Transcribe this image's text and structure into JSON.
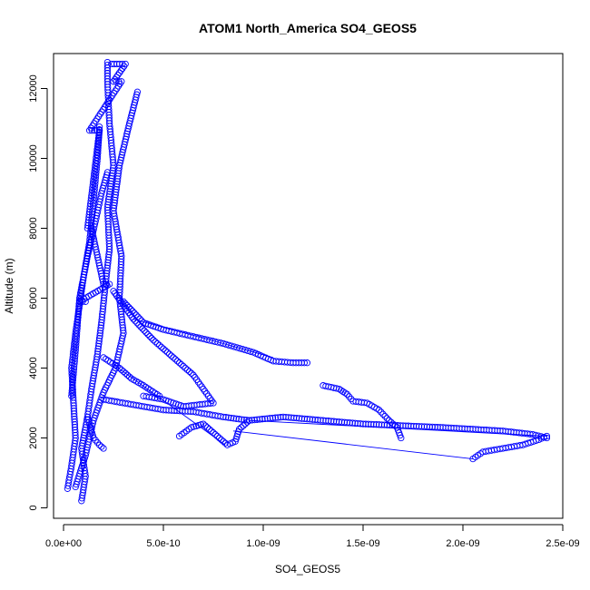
{
  "chart_data": {
    "type": "scatter",
    "title": "ATOM1 North_America SO4_GEOS5",
    "xlabel": "SO4_GEOS5",
    "ylabel": "Altitude (m)",
    "xlim": [
      -5e-11,
      2.5e-09
    ],
    "ylim": [
      -300,
      13000
    ],
    "xticks": [
      0,
      5e-10,
      1e-09,
      1.5e-09,
      2e-09,
      2.5e-09
    ],
    "xtick_labels": [
      "0.0e+00",
      "5.0e-10",
      "1.0e-09",
      "1.5e-09",
      "2.0e-09",
      "2.5e-09"
    ],
    "yticks": [
      0,
      2000,
      4000,
      6000,
      8000,
      10000,
      12000
    ],
    "ytick_labels": [
      "0",
      "2000",
      "4000",
      "6000",
      "8000",
      "10000",
      "12000"
    ],
    "grid": false,
    "legend": "none",
    "marker": "open-circle",
    "color": "#0000ff",
    "series": [
      {
        "points": [
          [
            2e-11,
            550
          ],
          [
            4e-11,
            1200
          ],
          [
            6e-11,
            2000
          ],
          [
            5e-11,
            3000
          ],
          [
            4e-11,
            4000
          ],
          [
            6e-11,
            5000
          ],
          [
            8e-11,
            5800
          ],
          [
            1e-10,
            6600
          ],
          [
            1.3e-10,
            7600
          ],
          [
            1.5e-10,
            8800
          ],
          [
            1.7e-10,
            10000
          ],
          [
            1.8e-10,
            10900
          ]
        ]
      },
      {
        "points": [
          [
            9e-11,
            200
          ],
          [
            1.1e-10,
            900
          ],
          [
            9e-11,
            1700
          ],
          [
            1.2e-10,
            2600
          ],
          [
            1.4e-10,
            3400
          ],
          [
            1.7e-10,
            4400
          ],
          [
            1.9e-10,
            5300
          ],
          [
            2.1e-10,
            6400
          ],
          [
            2.3e-10,
            7400
          ],
          [
            2.2e-10,
            8600
          ],
          [
            2.5e-10,
            9800
          ],
          [
            2.3e-10,
            11000
          ],
          [
            2.2e-10,
            12200
          ],
          [
            2.2e-10,
            12750
          ]
        ]
      },
      {
        "points": [
          [
            6e-11,
            600
          ],
          [
            1.1e-10,
            1500
          ],
          [
            1.5e-10,
            2500
          ],
          [
            2e-10,
            3300
          ],
          [
            2.6e-10,
            4000
          ],
          [
            3e-10,
            5000
          ],
          [
            2.8e-10,
            6000
          ],
          [
            2.9e-10,
            7200
          ],
          [
            2.5e-10,
            8500
          ],
          [
            2.8e-10,
            9800
          ],
          [
            3.3e-10,
            11000
          ],
          [
            3.7e-10,
            11900
          ]
        ]
      },
      {
        "points": [
          [
            4e-11,
            3200
          ],
          [
            6e-11,
            4500
          ],
          [
            8e-11,
            6000
          ],
          [
            1.2e-10,
            7200
          ],
          [
            1.6e-10,
            8200
          ],
          [
            1.9e-10,
            9000
          ],
          [
            2.2e-10,
            9600
          ]
        ]
      },
      {
        "points": [
          [
            2.4e-10,
            12700
          ],
          [
            2.8e-10,
            12700
          ],
          [
            3.1e-10,
            12700
          ],
          [
            2.5e-10,
            12200
          ],
          [
            2.9e-10,
            12200
          ],
          [
            1.3e-10,
            10800
          ],
          [
            1.8e-10,
            10800
          ],
          [
            1.2e-10,
            8000
          ],
          [
            1.4e-10,
            8000
          ],
          [
            2e-10,
            6400
          ],
          [
            2.3e-10,
            6400
          ],
          [
            8e-11,
            5900
          ],
          [
            1.1e-10,
            5900
          ]
        ]
      },
      {
        "points": [
          [
            2.5e-10,
            6200
          ],
          [
            3.5e-10,
            5400
          ],
          [
            4.5e-10,
            4800
          ],
          [
            5.5e-10,
            4300
          ],
          [
            6.5e-10,
            3800
          ],
          [
            7e-10,
            3400
          ],
          [
            7.5e-10,
            3000
          ],
          [
            6e-10,
            2900
          ],
          [
            5e-10,
            3100
          ],
          [
            4e-10,
            3200
          ]
        ]
      },
      {
        "points": [
          [
            3e-10,
            5900
          ],
          [
            4e-10,
            5300
          ],
          [
            5e-10,
            5100
          ],
          [
            6.5e-10,
            4900
          ],
          [
            8e-10,
            4700
          ],
          [
            9.5e-10,
            4450
          ],
          [
            1.05e-09,
            4200
          ],
          [
            1.15e-09,
            4150
          ],
          [
            1.22e-09,
            4150
          ]
        ]
      },
      {
        "points": [
          [
            1.3e-09,
            3500
          ],
          [
            1.38e-09,
            3400
          ],
          [
            1.42e-09,
            3250
          ],
          [
            1.45e-09,
            3050
          ],
          [
            1.52e-09,
            3000
          ],
          [
            1.58e-09,
            2800
          ],
          [
            1.63e-09,
            2500
          ],
          [
            1.67e-09,
            2300
          ],
          [
            1.69e-09,
            2000
          ]
        ]
      },
      {
        "points": [
          [
            2e-10,
            3100
          ],
          [
            3.5e-10,
            2950
          ],
          [
            5e-10,
            2800
          ],
          [
            6.5e-10,
            2750
          ],
          [
            8e-10,
            2600
          ],
          [
            9.3e-10,
            2500
          ],
          [
            1.1e-09,
            2600
          ],
          [
            1.3e-09,
            2500
          ],
          [
            1.5e-09,
            2400
          ],
          [
            1.7e-09,
            2350
          ],
          [
            1.9e-09,
            2300
          ],
          [
            2.05e-09,
            2250
          ],
          [
            2.2e-09,
            2200
          ],
          [
            2.35e-09,
            2100
          ],
          [
            2.42e-09,
            2000
          ]
        ]
      },
      {
        "points": [
          [
            2.05e-09,
            1400
          ],
          [
            2.1e-09,
            1600
          ],
          [
            2.2e-09,
            1700
          ],
          [
            2.3e-09,
            1800
          ],
          [
            2.38e-09,
            1950
          ],
          [
            2.42e-09,
            2050
          ]
        ]
      },
      {
        "points": [
          [
            5.8e-10,
            2050
          ],
          [
            6.4e-10,
            2300
          ],
          [
            7e-10,
            2400
          ],
          [
            8.2e-10,
            1800
          ],
          [
            8.6e-10,
            1900
          ],
          [
            8.8e-10,
            2250
          ],
          [
            9.3e-10,
            2500
          ]
        ]
      },
      {
        "points": [
          [
            1.2e-10,
            2600
          ],
          [
            1.5e-10,
            2000
          ],
          [
            1.8e-10,
            1800
          ],
          [
            2e-10,
            1700
          ]
        ]
      },
      {
        "points": [
          [
            2e-10,
            4300
          ],
          [
            2.8e-10,
            4000
          ],
          [
            3.4e-10,
            3700
          ],
          [
            4e-10,
            3500
          ],
          [
            4.8e-10,
            3200
          ]
        ]
      }
    ],
    "connector_lines": [
      {
        "points": [
          [
            2.5e-10,
            4100
          ],
          [
            8.1e-10,
            1800
          ]
        ]
      },
      {
        "points": [
          [
            8.5e-10,
            2200
          ],
          [
            2.05e-09,
            1400
          ]
        ]
      },
      {
        "points": [
          [
            3.5e-10,
            5400
          ],
          [
            8e-10,
            4700
          ],
          [
            1.05e-09,
            4300
          ]
        ]
      },
      {
        "points": [
          [
            9.3e-10,
            2500
          ],
          [
            2.42e-09,
            2050
          ]
        ]
      }
    ]
  }
}
